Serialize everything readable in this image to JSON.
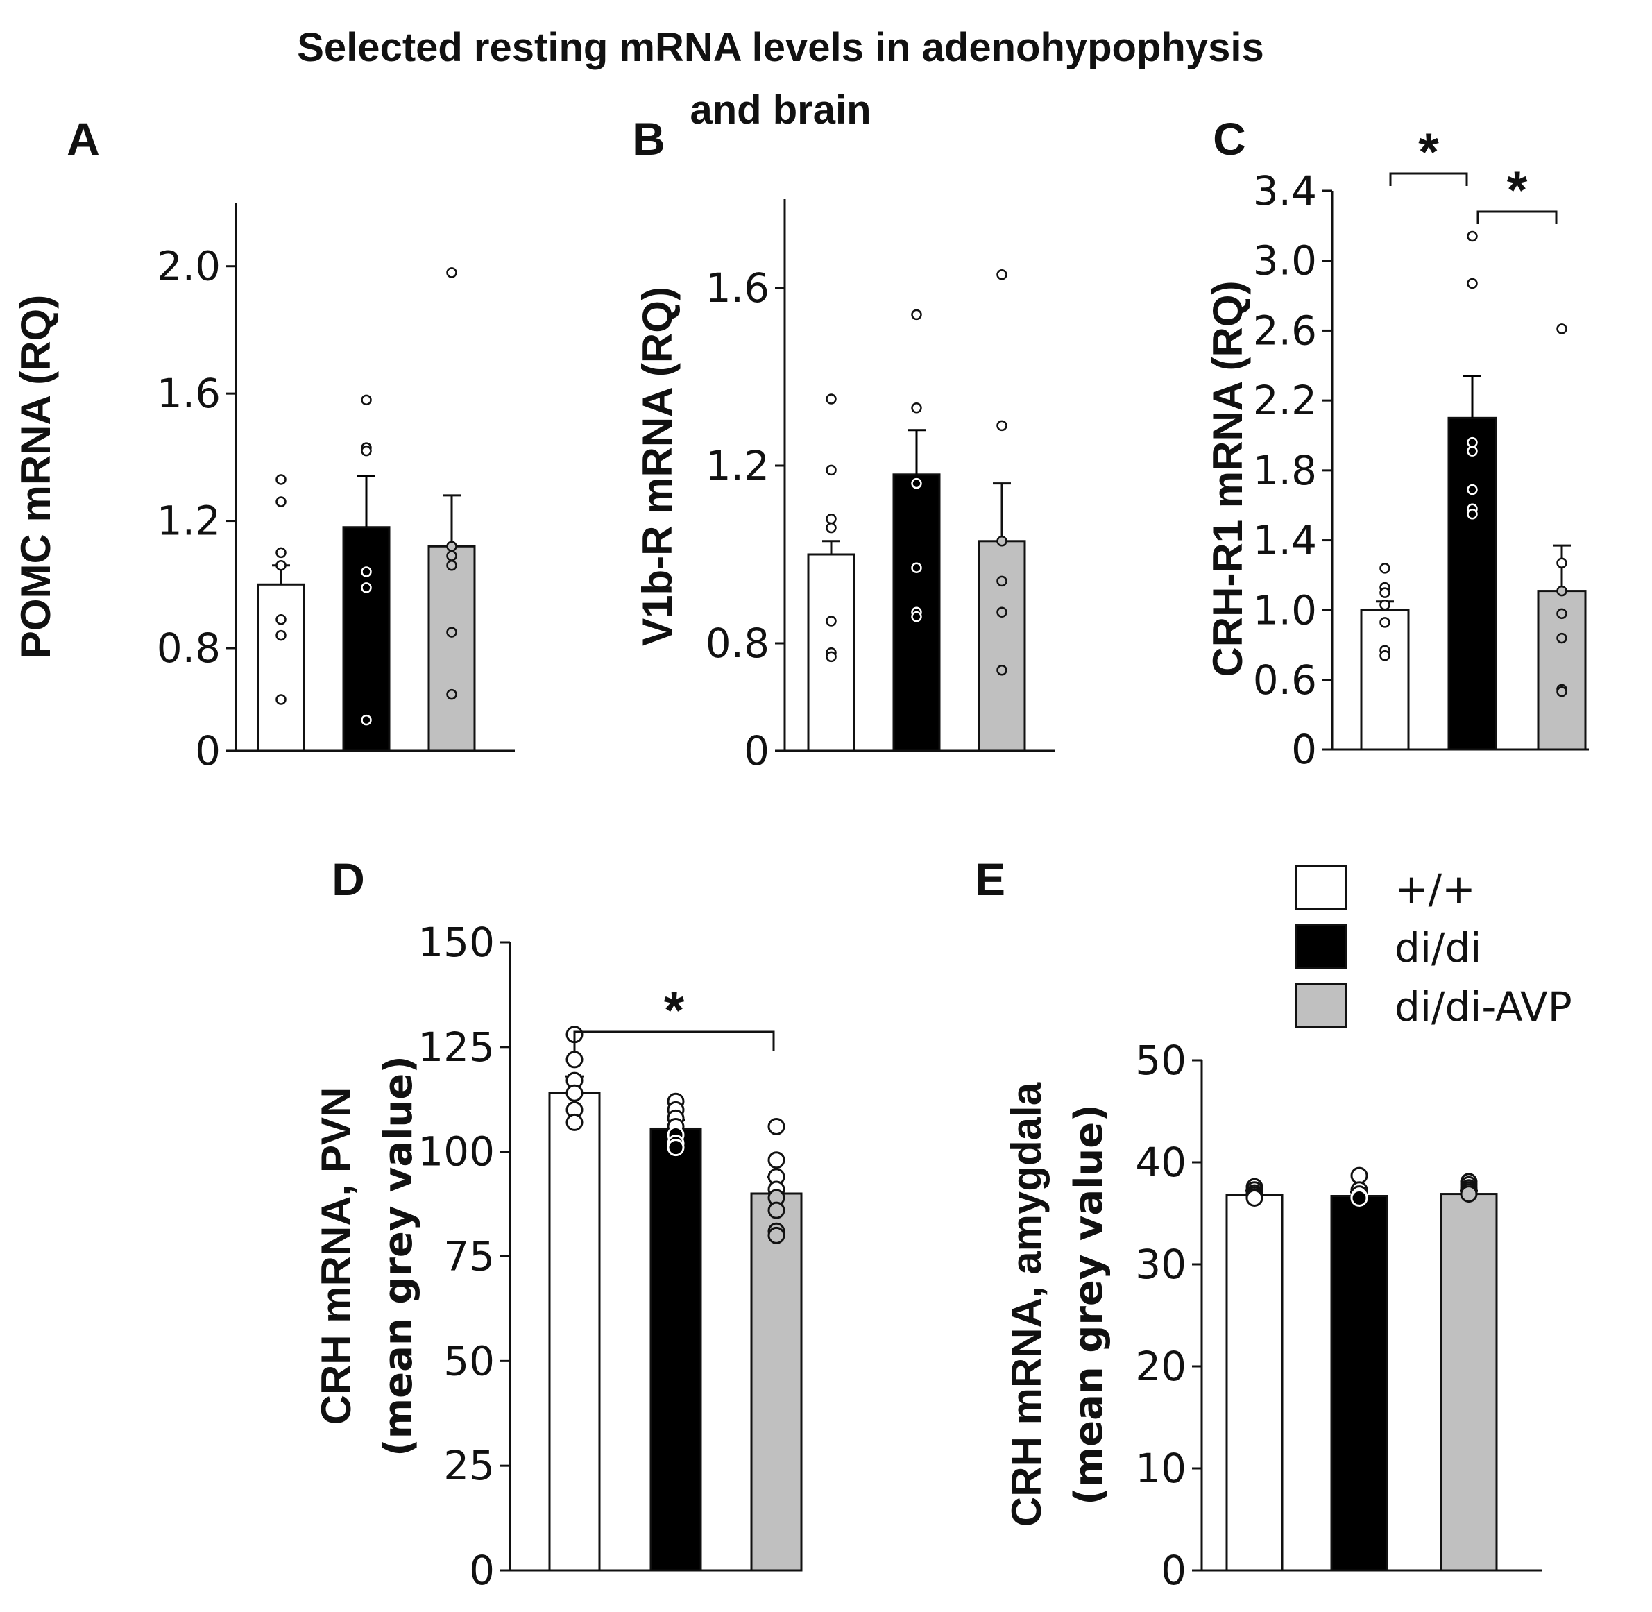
{
  "title_line1": "Selected resting mRNA levels in adenohypophysis",
  "title_line2": "and brain",
  "colors": {
    "wt": "#ffffff",
    "di": "#000000",
    "diavp": "#c0c0c0",
    "ink": "#111111"
  },
  "legend": [
    {
      "label": "+/+",
      "color": "#ffffff"
    },
    {
      "label": "di/di",
      "color": "#000000"
    },
    {
      "label": "di/di-AVP",
      "color": "#c0c0c0"
    }
  ],
  "chart_data": [
    {
      "type": "bar",
      "panel": "A",
      "ylabel": [
        "POMC mRNA (RQ)"
      ],
      "categories": [
        "+/+",
        "di/di",
        "di/di-AVP"
      ],
      "yticks": [
        0,
        0.8,
        1.2,
        1.6,
        2.0
      ],
      "tick_labels": [
        "0",
        "0.8",
        "1.2",
        "1.6",
        "2.0"
      ],
      "ylim": [
        0,
        2.2
      ],
      "axis_break_at": 0.8,
      "values": [
        1.0,
        1.18,
        1.12
      ],
      "errors": [
        0.06,
        0.16,
        0.16
      ],
      "points": [
        [
          1.33,
          1.26,
          1.1,
          1.06,
          0.89,
          0.84,
          0.4
        ],
        [
          1.58,
          1.43,
          1.42,
          1.04,
          0.99,
          0.24
        ],
        [
          1.98,
          1.12,
          1.09,
          1.06,
          0.85,
          0.44
        ]
      ],
      "significance": []
    },
    {
      "type": "bar",
      "panel": "B",
      "ylabel": [
        "V1b-R mRNA (RQ)"
      ],
      "categories": [
        "+/+",
        "di/di",
        "di/di-AVP"
      ],
      "yticks": [
        0,
        0.8,
        1.2,
        1.6
      ],
      "tick_labels": [
        "0",
        "0.8",
        "1.2",
        "1.6"
      ],
      "ylim": [
        0,
        1.8
      ],
      "axis_break_at": 0.8,
      "values": [
        1.0,
        1.18,
        1.03
      ],
      "errors": [
        0.03,
        0.1,
        0.13
      ],
      "points": [
        [
          1.35,
          1.19,
          1.08,
          1.06,
          0.85,
          0.73,
          0.7
        ],
        [
          1.54,
          1.33,
          1.16,
          0.97,
          0.87,
          0.86
        ],
        [
          1.63,
          1.29,
          1.03,
          0.94,
          0.87,
          0.6
        ]
      ],
      "significance": []
    },
    {
      "type": "bar",
      "panel": "C",
      "ylabel": [
        "CRH-R1 mRNA (RQ)"
      ],
      "categories": [
        "+/+",
        "di/di",
        "di/di-AVP"
      ],
      "yticks": [
        0,
        0.6,
        1.0,
        1.4,
        1.8,
        2.2,
        2.6,
        3.0,
        3.4
      ],
      "tick_labels": [
        "0",
        "0.6",
        "1.0",
        "1.4",
        "1.8",
        "2.2",
        "2.6",
        "3.0",
        "3.4"
      ],
      "ylim": [
        0,
        3.4
      ],
      "axis_break_at": 0.6,
      "values": [
        1.0,
        2.1,
        1.11
      ],
      "errors": [
        0.05,
        0.24,
        0.26
      ],
      "points": [
        [
          1.24,
          1.13,
          1.1,
          1.03,
          0.93,
          0.77,
          0.74
        ],
        [
          3.14,
          2.87,
          1.96,
          1.91,
          1.69,
          1.58,
          1.55
        ],
        [
          2.61,
          1.27,
          1.11,
          0.98,
          0.84,
          0.52,
          0.5
        ]
      ],
      "significance": [
        {
          "from": 0,
          "to": 1,
          "label": "*"
        },
        {
          "from": 1,
          "to": 2,
          "label": "*"
        }
      ]
    },
    {
      "type": "bar",
      "panel": "D",
      "ylabel": [
        "CRH mRNA, PVN",
        "(mean grey value)"
      ],
      "categories": [
        "+/+",
        "di/di",
        "di/di-AVP"
      ],
      "yticks": [
        0,
        25,
        50,
        75,
        100,
        125,
        150
      ],
      "tick_labels": [
        "0",
        "25",
        "50",
        "75",
        "100",
        "125",
        "150"
      ],
      "ylim": [
        0,
        150
      ],
      "axis_break_at": null,
      "values": [
        114,
        105.5,
        90
      ],
      "errors": [
        4,
        2,
        4
      ],
      "points": [
        [
          128,
          122,
          117,
          114,
          110,
          107
        ],
        [
          112,
          110,
          108,
          106,
          104,
          102,
          101
        ],
        [
          106,
          98,
          94,
          91,
          89,
          86,
          81,
          80
        ]
      ],
      "significance": [
        {
          "from": 0,
          "to": 2,
          "label": "*"
        }
      ]
    },
    {
      "type": "bar",
      "panel": "E",
      "ylabel": [
        "CRH mRNA, amygdala",
        "(mean grey value)"
      ],
      "categories": [
        "+/+",
        "di/di",
        "di/di-AVP"
      ],
      "yticks": [
        0,
        10,
        20,
        30,
        40,
        50
      ],
      "tick_labels": [
        "0",
        "10",
        "20",
        "30",
        "40",
        "50"
      ],
      "ylim": [
        0,
        50
      ],
      "axis_break_at": null,
      "values": [
        36.8,
        36.7,
        36.9
      ],
      "errors": [
        0.4,
        0.4,
        0.3
      ],
      "points": [
        [
          37.6,
          37.3,
          37.0,
          36.8,
          36.6,
          36.5
        ],
        [
          38.7,
          37.3,
          36.9,
          36.6,
          36.5
        ],
        [
          38.1,
          37.8,
          37.5,
          37.3,
          37.1,
          36.9
        ]
      ],
      "significance": []
    }
  ]
}
